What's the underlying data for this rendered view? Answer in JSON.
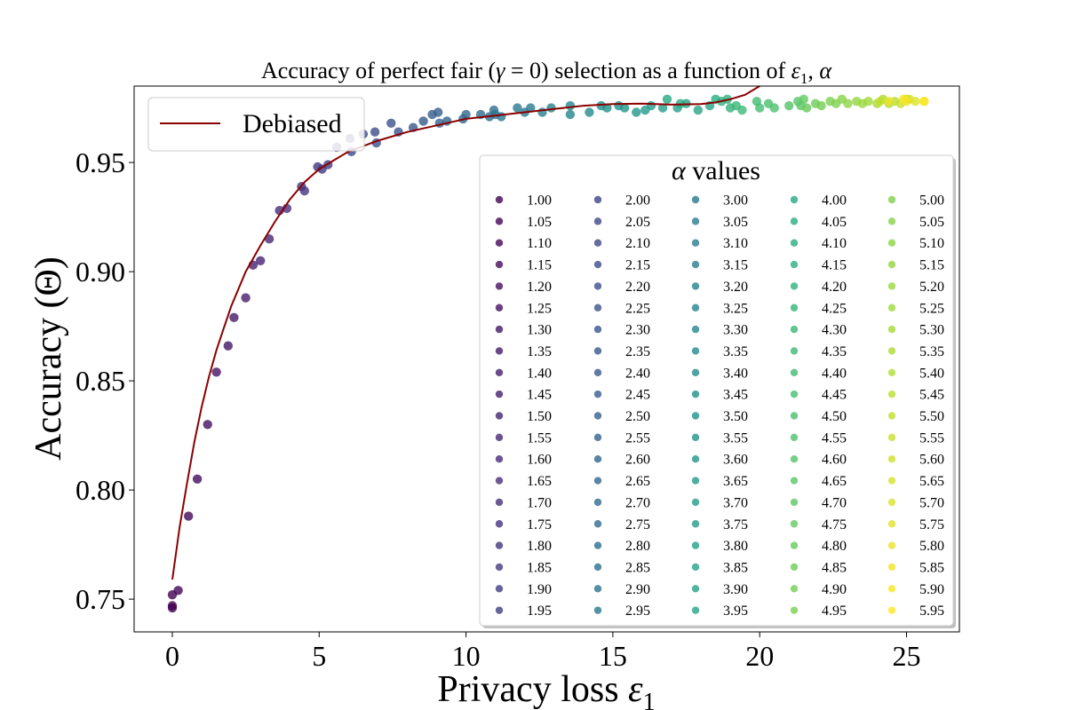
{
  "chart_data": {
    "type": "scatter",
    "title_main": "Accuracy of perfect fair (",
    "title_gamma": "γ",
    "title_mid": " = 0) selection as a function of ",
    "title_eps": "ε",
    "title_sub": "1",
    "title_sep": ", ",
    "title_alpha": "α",
    "xlabel_main": "Privacy loss ",
    "xlabel_eps": "ε",
    "xlabel_sub": "1",
    "ylabel": "Accuracy (Θ)",
    "xlim": [
      -1.3,
      26.8
    ],
    "ylim": [
      0.735,
      0.985
    ],
    "x_ticks": [
      0,
      5,
      10,
      15,
      20,
      25
    ],
    "x_tick_labels": [
      "0",
      "5",
      "10",
      "15",
      "20",
      "25"
    ],
    "y_ticks": [
      0.75,
      0.8,
      0.85,
      0.9,
      0.95
    ],
    "y_tick_labels": [
      "0.75",
      "0.80",
      "0.85",
      "0.90",
      "0.95"
    ],
    "grid": false,
    "colormap": "viridis",
    "line_series": {
      "name": "Debiased",
      "color": "#8b0000",
      "x": [
        0.0,
        0.25,
        0.5,
        0.75,
        1.0,
        1.25,
        1.5,
        1.75,
        2.0,
        2.5,
        3.0,
        3.5,
        4.0,
        4.5,
        5.0,
        5.5,
        6.0,
        7.0,
        8.0,
        9.0,
        10.0,
        11.0,
        12.0,
        13.0,
        14.0,
        15.0,
        16.0,
        17.0,
        18.0,
        18.5,
        19.0,
        19.5,
        20.0
      ],
      "y": [
        0.759,
        0.783,
        0.803,
        0.822,
        0.838,
        0.852,
        0.864,
        0.874,
        0.884,
        0.9,
        0.912,
        0.923,
        0.933,
        0.941,
        0.947,
        0.951,
        0.955,
        0.96,
        0.964,
        0.967,
        0.97,
        0.9715,
        0.973,
        0.9745,
        0.976,
        0.9768,
        0.977,
        0.9765,
        0.9768,
        0.9775,
        0.979,
        0.981,
        0.985
      ]
    },
    "legend_title": "α values",
    "alpha_labels": [
      "1.00",
      "1.05",
      "1.10",
      "1.15",
      "1.20",
      "1.25",
      "1.30",
      "1.35",
      "1.40",
      "1.45",
      "1.50",
      "1.55",
      "1.60",
      "1.65",
      "1.70",
      "1.75",
      "1.80",
      "1.85",
      "1.90",
      "1.95",
      "2.00",
      "2.05",
      "2.10",
      "2.15",
      "2.20",
      "2.25",
      "2.30",
      "2.35",
      "2.40",
      "2.45",
      "2.50",
      "2.55",
      "2.60",
      "2.65",
      "2.70",
      "2.75",
      "2.80",
      "2.85",
      "2.90",
      "2.95",
      "3.00",
      "3.05",
      "3.10",
      "3.15",
      "3.20",
      "3.25",
      "3.30",
      "3.35",
      "3.40",
      "3.45",
      "3.50",
      "3.55",
      "3.60",
      "3.65",
      "3.70",
      "3.75",
      "3.80",
      "3.85",
      "3.90",
      "3.95",
      "4.00",
      "4.05",
      "4.10",
      "4.15",
      "4.20",
      "4.25",
      "4.30",
      "4.35",
      "4.40",
      "4.45",
      "4.50",
      "4.55",
      "4.60",
      "4.65",
      "4.70",
      "4.75",
      "4.80",
      "4.85",
      "4.90",
      "4.95",
      "5.00",
      "5.05",
      "5.10",
      "5.15",
      "5.20",
      "5.25",
      "5.30",
      "5.35",
      "5.40",
      "5.45",
      "5.50",
      "5.55",
      "5.60",
      "5.65",
      "5.70",
      "5.75",
      "5.80",
      "5.85",
      "5.90",
      "5.95"
    ],
    "points": [
      {
        "x": 0.0,
        "y": 0.747,
        "a": 0
      },
      {
        "x": 0.0,
        "y": 0.746,
        "a": 0
      },
      {
        "x": 0.0,
        "y": 0.752,
        "a": 0
      },
      {
        "x": 0.2,
        "y": 0.754,
        "a": 1
      },
      {
        "x": 0.55,
        "y": 0.788,
        "a": 2
      },
      {
        "x": 0.85,
        "y": 0.805,
        "a": 3
      },
      {
        "x": 1.2,
        "y": 0.83,
        "a": 4
      },
      {
        "x": 1.5,
        "y": 0.854,
        "a": 5
      },
      {
        "x": 1.9,
        "y": 0.866,
        "a": 6
      },
      {
        "x": 2.1,
        "y": 0.879,
        "a": 7
      },
      {
        "x": 2.5,
        "y": 0.888,
        "a": 8
      },
      {
        "x": 2.75,
        "y": 0.903,
        "a": 9
      },
      {
        "x": 3.0,
        "y": 0.905,
        "a": 10
      },
      {
        "x": 3.3,
        "y": 0.915,
        "a": 11
      },
      {
        "x": 3.65,
        "y": 0.928,
        "a": 12
      },
      {
        "x": 3.9,
        "y": 0.929,
        "a": 13
      },
      {
        "x": 4.4,
        "y": 0.939,
        "a": 14
      },
      {
        "x": 4.5,
        "y": 0.937,
        "a": 15
      },
      {
        "x": 4.95,
        "y": 0.948,
        "a": 16
      },
      {
        "x": 5.1,
        "y": 0.947,
        "a": 17
      },
      {
        "x": 5.3,
        "y": 0.949,
        "a": 18
      },
      {
        "x": 5.6,
        "y": 0.957,
        "a": 19
      },
      {
        "x": 6.05,
        "y": 0.961,
        "a": 20
      },
      {
        "x": 6.1,
        "y": 0.955,
        "a": 21
      },
      {
        "x": 6.5,
        "y": 0.963,
        "a": 22
      },
      {
        "x": 6.9,
        "y": 0.964,
        "a": 23
      },
      {
        "x": 6.95,
        "y": 0.959,
        "a": 24
      },
      {
        "x": 7.45,
        "y": 0.968,
        "a": 25
      },
      {
        "x": 7.7,
        "y": 0.964,
        "a": 26
      },
      {
        "x": 8.2,
        "y": 0.966,
        "a": 27
      },
      {
        "x": 8.55,
        "y": 0.969,
        "a": 28
      },
      {
        "x": 8.85,
        "y": 0.972,
        "a": 29
      },
      {
        "x": 9.05,
        "y": 0.973,
        "a": 30
      },
      {
        "x": 9.1,
        "y": 0.968,
        "a": 31
      },
      {
        "x": 9.35,
        "y": 0.969,
        "a": 32
      },
      {
        "x": 9.9,
        "y": 0.97,
        "a": 33
      },
      {
        "x": 10.0,
        "y": 0.972,
        "a": 34
      },
      {
        "x": 10.5,
        "y": 0.972,
        "a": 35
      },
      {
        "x": 10.8,
        "y": 0.971,
        "a": 36
      },
      {
        "x": 10.95,
        "y": 0.974,
        "a": 37
      },
      {
        "x": 11.0,
        "y": 0.972,
        "a": 38
      },
      {
        "x": 11.2,
        "y": 0.971,
        "a": 39
      },
      {
        "x": 11.75,
        "y": 0.975,
        "a": 40
      },
      {
        "x": 12.0,
        "y": 0.973,
        "a": 41
      },
      {
        "x": 12.2,
        "y": 0.975,
        "a": 42
      },
      {
        "x": 12.6,
        "y": 0.973,
        "a": 43
      },
      {
        "x": 12.9,
        "y": 0.975,
        "a": 44
      },
      {
        "x": 13.55,
        "y": 0.972,
        "a": 45
      },
      {
        "x": 13.55,
        "y": 0.976,
        "a": 46
      },
      {
        "x": 14.2,
        "y": 0.973,
        "a": 47
      },
      {
        "x": 14.6,
        "y": 0.976,
        "a": 48
      },
      {
        "x": 14.8,
        "y": 0.975,
        "a": 49
      },
      {
        "x": 15.2,
        "y": 0.976,
        "a": 50
      },
      {
        "x": 15.4,
        "y": 0.975,
        "a": 51
      },
      {
        "x": 15.8,
        "y": 0.973,
        "a": 52
      },
      {
        "x": 16.1,
        "y": 0.974,
        "a": 53
      },
      {
        "x": 16.3,
        "y": 0.976,
        "a": 54
      },
      {
        "x": 16.7,
        "y": 0.975,
        "a": 55
      },
      {
        "x": 17.2,
        "y": 0.975,
        "a": 56
      },
      {
        "x": 17.5,
        "y": 0.977,
        "a": 57
      },
      {
        "x": 17.9,
        "y": 0.974,
        "a": 58
      },
      {
        "x": 18.3,
        "y": 0.976,
        "a": 59
      },
      {
        "x": 16.85,
        "y": 0.979,
        "a": 60
      },
      {
        "x": 17.3,
        "y": 0.977,
        "a": 61
      },
      {
        "x": 18.5,
        "y": 0.979,
        "a": 62
      },
      {
        "x": 18.7,
        "y": 0.978,
        "a": 63
      },
      {
        "x": 18.9,
        "y": 0.979,
        "a": 64
      },
      {
        "x": 19.0,
        "y": 0.975,
        "a": 65
      },
      {
        "x": 19.2,
        "y": 0.976,
        "a": 66
      },
      {
        "x": 19.4,
        "y": 0.974,
        "a": 67
      },
      {
        "x": 19.9,
        "y": 0.978,
        "a": 68
      },
      {
        "x": 20.0,
        "y": 0.975,
        "a": 69
      },
      {
        "x": 20.3,
        "y": 0.977,
        "a": 70
      },
      {
        "x": 20.5,
        "y": 0.975,
        "a": 71
      },
      {
        "x": 21.0,
        "y": 0.976,
        "a": 72
      },
      {
        "x": 21.3,
        "y": 0.978,
        "a": 73
      },
      {
        "x": 21.4,
        "y": 0.976,
        "a": 74
      },
      {
        "x": 21.5,
        "y": 0.979,
        "a": 75
      },
      {
        "x": 21.6,
        "y": 0.975,
        "a": 76
      },
      {
        "x": 21.9,
        "y": 0.977,
        "a": 77
      },
      {
        "x": 22.1,
        "y": 0.976,
        "a": 78
      },
      {
        "x": 22.4,
        "y": 0.978,
        "a": 79
      },
      {
        "x": 22.6,
        "y": 0.977,
        "a": 80
      },
      {
        "x": 22.8,
        "y": 0.979,
        "a": 81
      },
      {
        "x": 23.0,
        "y": 0.977,
        "a": 82
      },
      {
        "x": 23.3,
        "y": 0.978,
        "a": 83
      },
      {
        "x": 23.5,
        "y": 0.977,
        "a": 84
      },
      {
        "x": 23.7,
        "y": 0.978,
        "a": 85
      },
      {
        "x": 24.0,
        "y": 0.977,
        "a": 86
      },
      {
        "x": 24.2,
        "y": 0.979,
        "a": 87
      },
      {
        "x": 24.4,
        "y": 0.977,
        "a": 88
      },
      {
        "x": 24.6,
        "y": 0.978,
        "a": 89
      },
      {
        "x": 24.1,
        "y": 0.978,
        "a": 90
      },
      {
        "x": 24.8,
        "y": 0.977,
        "a": 91
      },
      {
        "x": 25.0,
        "y": 0.979,
        "a": 92
      },
      {
        "x": 25.1,
        "y": 0.979,
        "a": 93
      },
      {
        "x": 25.3,
        "y": 0.978,
        "a": 94
      },
      {
        "x": 25.6,
        "y": 0.978,
        "a": 95
      },
      {
        "x": 24.4,
        "y": 0.978,
        "a": 96
      },
      {
        "x": 25.0,
        "y": 0.978,
        "a": 97
      },
      {
        "x": 24.9,
        "y": 0.979,
        "a": 98
      },
      {
        "x": 25.6,
        "y": 0.978,
        "a": 99
      }
    ]
  }
}
